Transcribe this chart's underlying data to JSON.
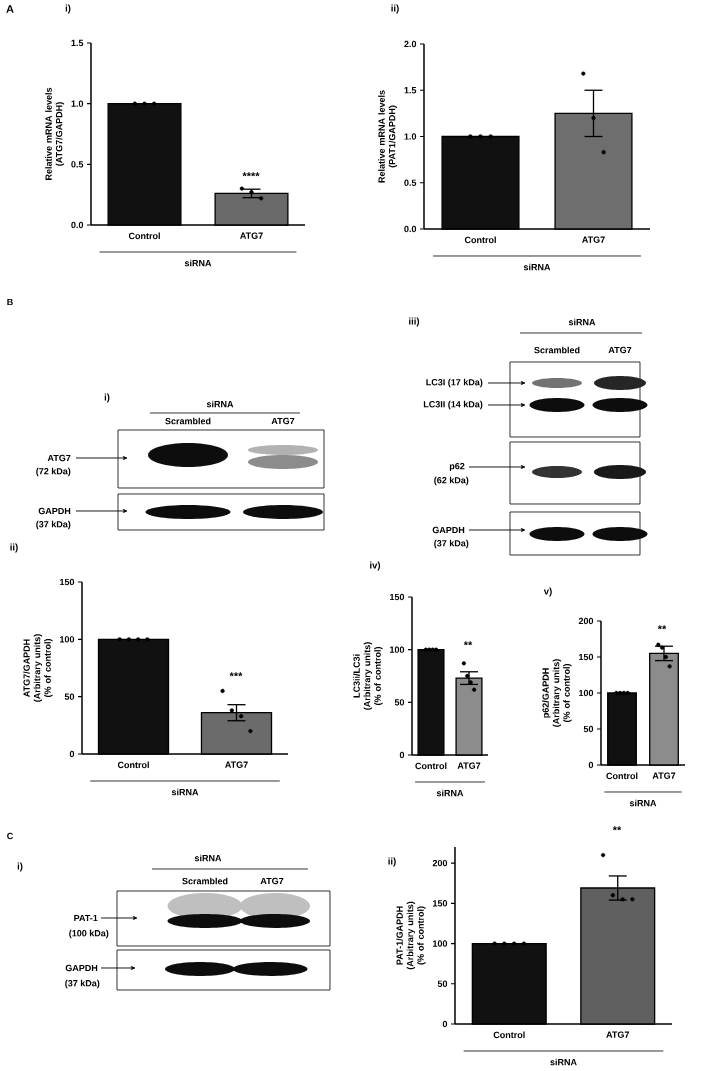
{
  "chart_data": [
    {
      "type": "bar",
      "title": "i)",
      "ylabel": "Relative mRNA levels (ATG7/GAPDH)",
      "xlabel": "siRNA",
      "categories": [
        "Control",
        "ATG7"
      ],
      "ylim": [
        0,
        1.5
      ],
      "yticks": [
        {
          "value": 0,
          "label": "0.0"
        },
        {
          "value": 0.5,
          "label": "0.5"
        },
        {
          "value": 1,
          "label": "1.0"
        },
        {
          "value": 1.5,
          "label": "1.5"
        }
      ],
      "marker": "circle",
      "series": [
        {
          "type": "bar",
          "colors": [
            "#111111",
            "#6a6a6a"
          ],
          "values": [
            1.0,
            0.26
          ],
          "errors": [
            null,
            0.035
          ]
        },
        {
          "type": "scatter",
          "color": "#000000",
          "x": [
            "Control",
            "Control",
            "Control",
            "ATG7",
            "ATG7",
            "ATG7"
          ],
          "values": [
            1.0,
            1.0,
            1.0,
            0.3,
            0.27,
            0.22
          ]
        }
      ],
      "annotations": [
        "A",
        "****"
      ]
    },
    {
      "type": "bar",
      "title": "ii)",
      "ylabel": "Relative mRNA levels (PAT1/GAPDH)",
      "xlabel": "siRNA",
      "categories": [
        "Control",
        "ATG7"
      ],
      "ylim": [
        0,
        2
      ],
      "yticks": [
        {
          "value": 0,
          "label": "0.0"
        },
        {
          "value": 0.5,
          "label": "0.5"
        },
        {
          "value": 1,
          "label": "1.0"
        },
        {
          "value": 1.5,
          "label": "1.5"
        },
        {
          "value": 2,
          "label": "2.0"
        }
      ],
      "marker": "circle",
      "series": [
        {
          "type": "bar",
          "colors": [
            "#111111",
            "#6e6e6e"
          ],
          "values": [
            1.0,
            1.25
          ],
          "errors": [
            null,
            0.25
          ]
        },
        {
          "type": "scatter",
          "color": "#000000",
          "x": [
            "Control",
            "Control",
            "Control",
            "ATG7",
            "ATG7",
            "ATG7"
          ],
          "values": [
            1.0,
            1.0,
            1.0,
            1.68,
            1.2,
            0.83
          ]
        }
      ]
    },
    {
      "type": "other",
      "title": "i)",
      "annotations": [
        "B",
        "siRNA",
        "Scrambled",
        "ATG7",
        "ATG7",
        "(72 kDa)",
        "GAPDH",
        "(37 kDa)"
      ]
    },
    {
      "type": "other",
      "title": "iii)",
      "annotations": [
        "siRNA",
        "Scrambled",
        "ATG7",
        "LC3I (17 kDa)",
        "LC3II (14 kDa)",
        "p62",
        "(62 kDa)",
        "GAPDH",
        "(37 kDa)"
      ]
    },
    {
      "type": "bar",
      "title": "ii)",
      "ylabel": "ATG7/GAPDH (Arbitrary units) (% of control)",
      "xlabel": "siRNA",
      "categories": [
        "Control",
        "ATG7"
      ],
      "ylim": [
        0,
        150
      ],
      "yticks": [
        0,
        50,
        100,
        150
      ],
      "marker": "circle",
      "series": [
        {
          "type": "bar",
          "colors": [
            "#111111",
            "#6b6b6b"
          ],
          "values": [
            100,
            36
          ],
          "errors": [
            null,
            7
          ]
        },
        {
          "type": "scatter",
          "color": "#000000",
          "x": [
            "Control",
            "Control",
            "Control",
            "Control",
            "ATG7",
            "ATG7",
            "ATG7",
            "ATG7"
          ],
          "values": [
            100,
            100,
            100,
            100,
            55,
            38,
            33,
            20
          ]
        }
      ],
      "annotations": [
        "***"
      ]
    },
    {
      "type": "bar",
      "title": "iv)",
      "ylabel": "LC3ii/LC3i (Arbitrary units) (% of control)",
      "xlabel": "siRNA",
      "categories": [
        "Control",
        "ATG7"
      ],
      "ylim": [
        0,
        150
      ],
      "yticks": [
        0,
        50,
        100,
        150
      ],
      "marker": "circle",
      "series": [
        {
          "type": "bar",
          "colors": [
            "#111111",
            "#8c8c8c"
          ],
          "values": [
            100,
            73
          ],
          "errors": [
            null,
            6
          ]
        },
        {
          "type": "scatter",
          "color": "#000000",
          "x": [
            "Control",
            "Control",
            "Control",
            "Control",
            "ATG7",
            "ATG7",
            "ATG7",
            "ATG7"
          ],
          "values": [
            100,
            100,
            100,
            100,
            87,
            75,
            69,
            62
          ]
        }
      ],
      "annotations": [
        "**"
      ]
    },
    {
      "type": "bar",
      "title": "v)",
      "ylabel": "p62/GAPDH (Arbitrary units) (% of control)",
      "xlabel": "siRNA",
      "categories": [
        "Control",
        "ATG7"
      ],
      "ylim": [
        0,
        200
      ],
      "yticks": [
        0,
        50,
        100,
        150,
        200
      ],
      "marker": "circle",
      "series": [
        {
          "type": "bar",
          "colors": [
            "#111111",
            "#8c8c8c"
          ],
          "values": [
            100,
            155
          ],
          "errors": [
            null,
            10
          ]
        },
        {
          "type": "scatter",
          "color": "#000000",
          "x": [
            "Control",
            "Control",
            "Control",
            "Control",
            "ATG7",
            "ATG7",
            "ATG7",
            "ATG7"
          ],
          "values": [
            100,
            100,
            100,
            100,
            167,
            163,
            150,
            137
          ]
        }
      ],
      "annotations": [
        "**"
      ]
    },
    {
      "type": "other",
      "title": "i)",
      "annotations": [
        "C",
        "siRNA",
        "Scrambled",
        "ATG7",
        "PAT-1",
        "(100 kDa)",
        "GAPDH",
        "(37 kDa)"
      ]
    },
    {
      "type": "bar",
      "title": "ii)",
      "ylabel": "PAT-1/GAPDH (Arbitrary units) (% of control)",
      "xlabel": "siRNA",
      "categories": [
        "Control",
        "ATG7"
      ],
      "ylim": [
        0,
        220
      ],
      "yticks": [
        0,
        50,
        100,
        150,
        200
      ],
      "marker": "circle",
      "series": [
        {
          "type": "bar",
          "colors": [
            "#111111",
            "#606060"
          ],
          "values": [
            100,
            169
          ],
          "errors": [
            null,
            15
          ]
        },
        {
          "type": "scatter",
          "color": "#000000",
          "x": [
            "Control",
            "Control",
            "Control",
            "Control",
            "ATG7",
            "ATG7",
            "ATG7",
            "ATG7"
          ],
          "values": [
            100,
            100,
            100,
            100,
            210,
            160,
            155,
            155
          ]
        }
      ],
      "annotations": [
        "**"
      ]
    }
  ]
}
